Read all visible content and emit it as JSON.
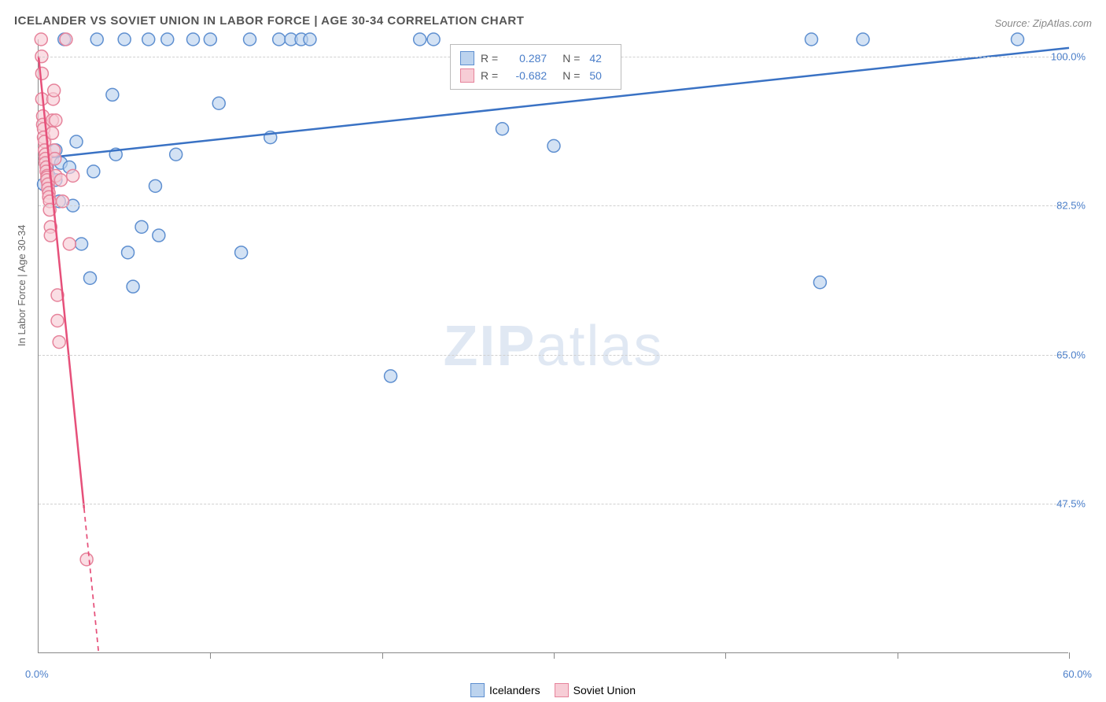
{
  "title": "ICELANDER VS SOVIET UNION IN LABOR FORCE | AGE 30-34 CORRELATION CHART",
  "source": "Source: ZipAtlas.com",
  "y_axis_label": "In Labor Force | Age 30-34",
  "watermark_zip": "ZIP",
  "watermark_atlas": "atlas",
  "chart": {
    "type": "scatter",
    "background_color": "#ffffff",
    "grid_color": "#d0d0d0",
    "axis_color": "#888888",
    "tick_label_color": "#4a7ec9",
    "xlim": [
      0.0,
      60.0
    ],
    "ylim": [
      30.0,
      102.0
    ],
    "y_ticks": [
      {
        "value": 100.0,
        "label": "100.0%"
      },
      {
        "value": 82.5,
        "label": "82.5%"
      },
      {
        "value": 65.0,
        "label": "65.0%"
      },
      {
        "value": 47.5,
        "label": "47.5%"
      }
    ],
    "x_tick_positions": [
      0,
      10,
      20,
      30,
      40,
      50,
      60
    ],
    "x_labels": {
      "min": "0.0%",
      "max": "60.0%"
    },
    "marker_radius": 8,
    "marker_stroke_width": 1.5,
    "trend_line_width": 2.5,
    "series": [
      {
        "name": "Icelanders",
        "fill_color": "#bcd3ee",
        "stroke_color": "#5e8fd0",
        "line_color": "#3a72c4",
        "R": "0.287",
        "N": "42",
        "trend_line": {
          "x1": 0.0,
          "y1": 88.0,
          "x2": 60.0,
          "y2": 101.0,
          "dash": "none"
        },
        "points": [
          [
            0.3,
            85.0
          ],
          [
            0.5,
            87.0
          ],
          [
            0.6,
            86.0
          ],
          [
            0.8,
            88.0
          ],
          [
            1.0,
            85.5
          ],
          [
            1.0,
            89.0
          ],
          [
            1.2,
            83.0
          ],
          [
            1.3,
            87.5
          ],
          [
            1.5,
            102.0
          ],
          [
            1.8,
            87.0
          ],
          [
            2.0,
            82.5
          ],
          [
            2.2,
            90.0
          ],
          [
            2.5,
            78.0
          ],
          [
            3.0,
            74.0
          ],
          [
            3.2,
            86.5
          ],
          [
            3.4,
            102.0
          ],
          [
            4.3,
            95.5
          ],
          [
            4.5,
            88.5
          ],
          [
            5.0,
            102.0
          ],
          [
            5.2,
            77.0
          ],
          [
            5.5,
            73.0
          ],
          [
            6.0,
            80.0
          ],
          [
            6.4,
            102.0
          ],
          [
            6.8,
            84.8
          ],
          [
            7.0,
            79.0
          ],
          [
            7.5,
            102.0
          ],
          [
            8.0,
            88.5
          ],
          [
            9.0,
            102.0
          ],
          [
            10.0,
            102.0
          ],
          [
            10.5,
            94.5
          ],
          [
            11.8,
            77.0
          ],
          [
            12.3,
            102.0
          ],
          [
            13.5,
            90.5
          ],
          [
            14.0,
            102.0
          ],
          [
            14.7,
            102.0
          ],
          [
            15.3,
            102.0
          ],
          [
            15.8,
            102.0
          ],
          [
            20.5,
            62.5
          ],
          [
            22.2,
            102.0
          ],
          [
            23.0,
            102.0
          ],
          [
            27.0,
            91.5
          ],
          [
            30.0,
            89.5
          ],
          [
            45.0,
            102.0
          ],
          [
            45.5,
            73.5
          ],
          [
            48.0,
            102.0
          ],
          [
            57.0,
            102.0
          ]
        ]
      },
      {
        "name": "Soviet Union",
        "fill_color": "#f7cdd6",
        "stroke_color": "#e6839b",
        "line_color": "#e6507a",
        "R": "-0.682",
        "N": "50",
        "trend_line": {
          "x1": 0.0,
          "y1": 100.0,
          "x2": 3.5,
          "y2": 30.0,
          "dash": "continue"
        },
        "points": [
          [
            0.15,
            102.0
          ],
          [
            0.18,
            100.0
          ],
          [
            0.2,
            98.0
          ],
          [
            0.2,
            95.0
          ],
          [
            0.25,
            93.0
          ],
          [
            0.25,
            92.0
          ],
          [
            0.3,
            91.5
          ],
          [
            0.3,
            90.5
          ],
          [
            0.35,
            90.0
          ],
          [
            0.35,
            89.0
          ],
          [
            0.4,
            88.5
          ],
          [
            0.4,
            88.0
          ],
          [
            0.4,
            87.5
          ],
          [
            0.45,
            87.0
          ],
          [
            0.45,
            86.5
          ],
          [
            0.5,
            86.0
          ],
          [
            0.5,
            85.8
          ],
          [
            0.5,
            85.5
          ],
          [
            0.55,
            85.0
          ],
          [
            0.55,
            84.5
          ],
          [
            0.6,
            84.0
          ],
          [
            0.6,
            83.5
          ],
          [
            0.65,
            83.0
          ],
          [
            0.65,
            82.0
          ],
          [
            0.7,
            80.0
          ],
          [
            0.7,
            79.0
          ],
          [
            0.8,
            91.0
          ],
          [
            0.8,
            92.5
          ],
          [
            0.85,
            95.0
          ],
          [
            0.9,
            96.0
          ],
          [
            0.9,
            89.0
          ],
          [
            0.95,
            88.0
          ],
          [
            1.0,
            92.5
          ],
          [
            1.0,
            86.0
          ],
          [
            1.1,
            72.0
          ],
          [
            1.1,
            69.0
          ],
          [
            1.2,
            66.5
          ],
          [
            1.3,
            85.5
          ],
          [
            1.4,
            83.0
          ],
          [
            1.6,
            102.0
          ],
          [
            1.8,
            78.0
          ],
          [
            2.0,
            86.0
          ],
          [
            2.8,
            41.0
          ]
        ]
      }
    ]
  },
  "legend": {
    "r_label": "R =",
    "n_label": "N ="
  },
  "bottom_legend_labels": {
    "a": "Icelanders",
    "b": "Soviet Union"
  }
}
